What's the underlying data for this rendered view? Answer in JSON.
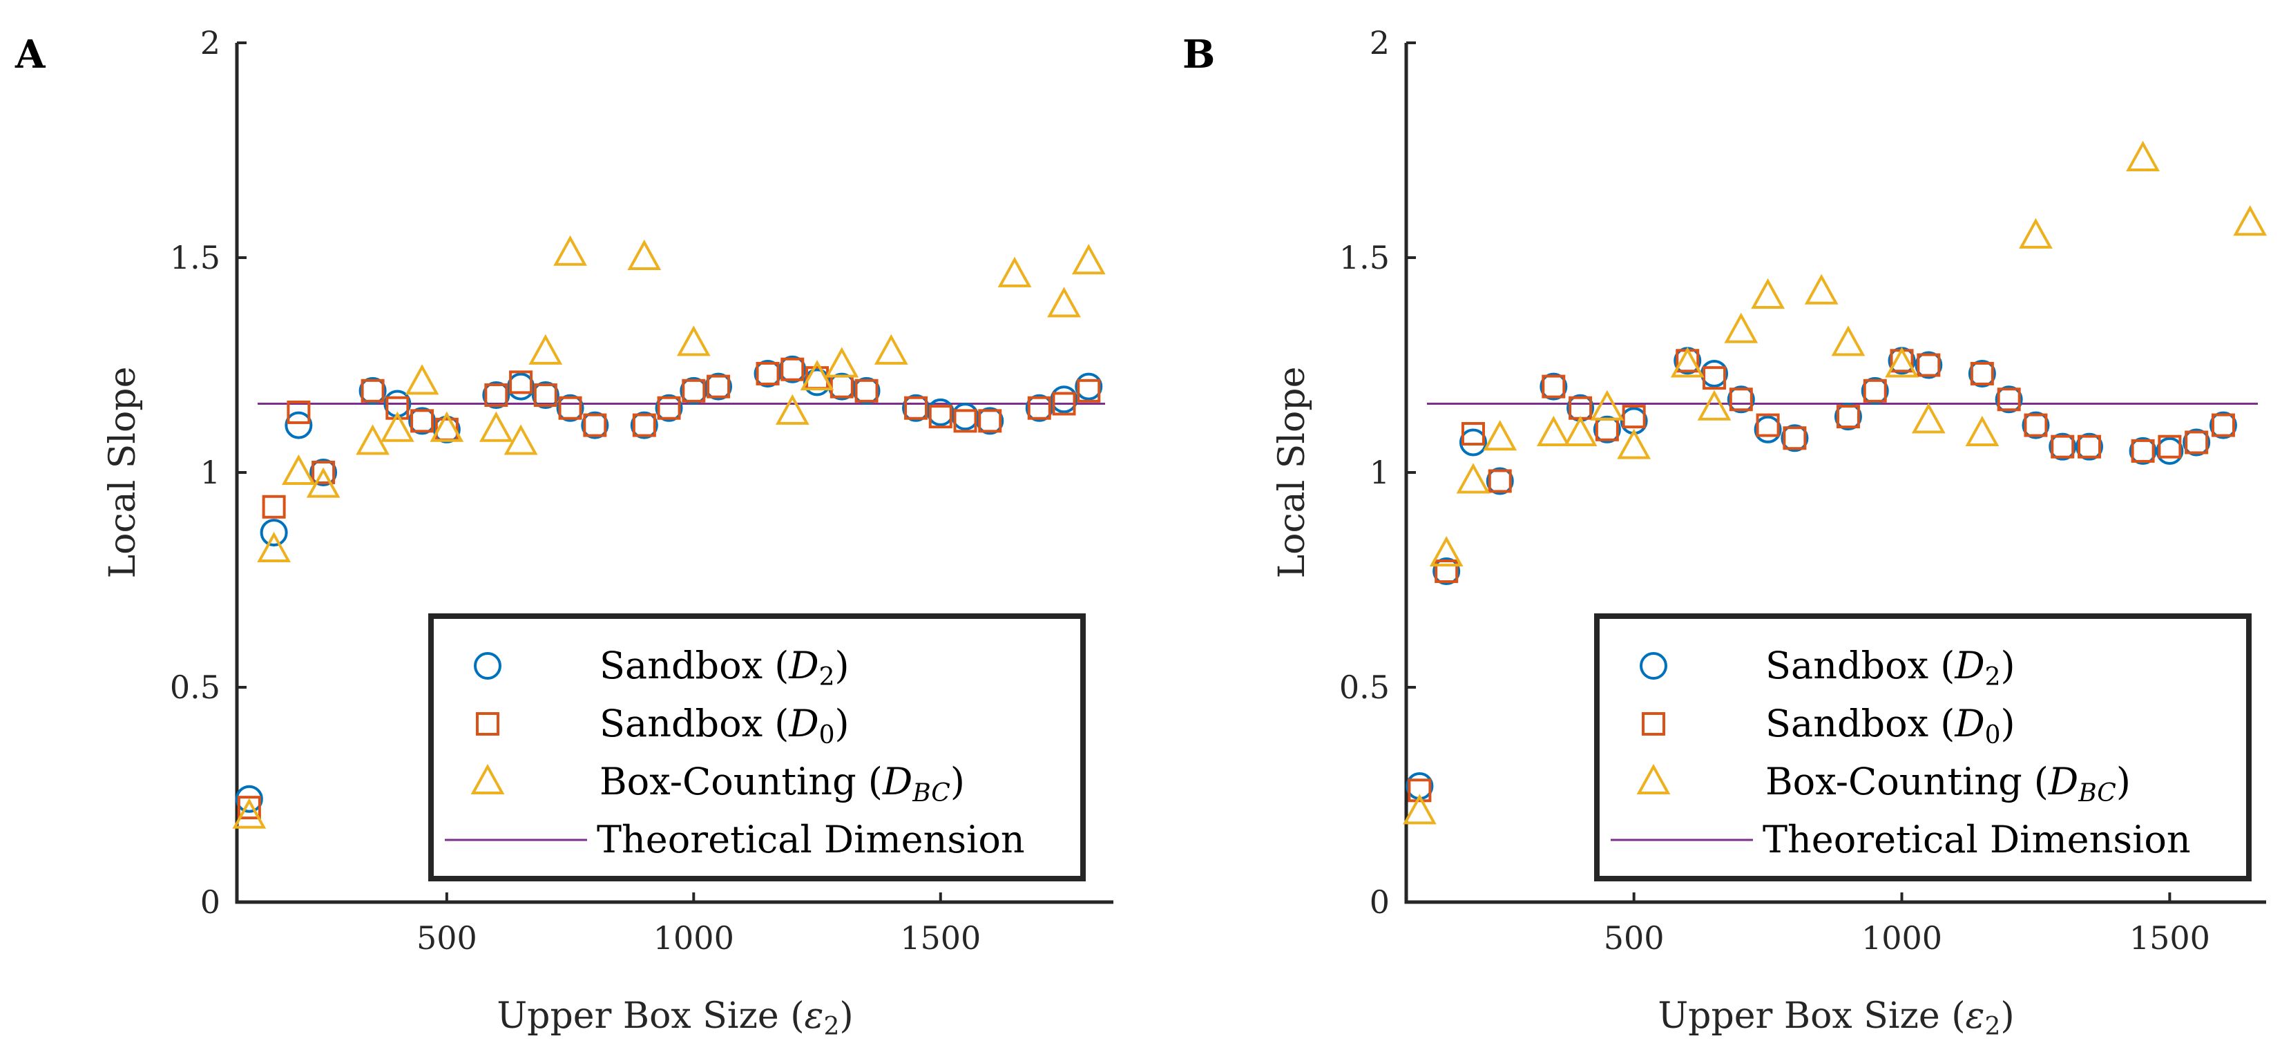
{
  "colors": {
    "sandbox_d2": "#0072BD",
    "sandbox_d0": "#D95319",
    "box_counting": "#EDB120",
    "theoretical": "#7E2F8E",
    "axis": "#262626"
  },
  "chart_data": [
    {
      "type": "scatter",
      "panel_label": "A",
      "xlabel_text": "Upper Box Size (",
      "xlabel_symbol": "ε",
      "xlabel_sub": "2",
      "xlabel_close": ")",
      "ylabel": "Local Slope",
      "xlim": [
        75,
        1850
      ],
      "ylim": [
        0,
        2
      ],
      "xticks": [
        500,
        1000,
        1500
      ],
      "xtick_labels": [
        "500",
        "1000",
        "1500"
      ],
      "yticks": [
        0,
        0.5,
        1,
        1.5,
        2
      ],
      "ytick_labels": [
        "0",
        "0.5",
        "1",
        "1.5",
        "2"
      ],
      "theoretical_dimension": 1.16,
      "legend": [
        {
          "key": "sandbox_d2",
          "marker": "circle",
          "text": "Sandbox (",
          "sym": "D",
          "sub": "2",
          "close": ")"
        },
        {
          "key": "sandbox_d0",
          "marker": "square",
          "text": "Sandbox (",
          "sym": "D",
          "sub": "0",
          "close": ")"
        },
        {
          "key": "box_counting",
          "marker": "triangle",
          "text": "Box-Counting (",
          "sym": "D",
          "sub": "BC",
          "close": ")"
        },
        {
          "key": "theoretical",
          "marker": "line",
          "text": "Theoretical Dimension",
          "sym": "",
          "sub": "",
          "close": ""
        }
      ],
      "series": [
        {
          "key": "sandbox_d2",
          "name": "Sandbox (D2)",
          "marker": "circle",
          "x": [
            100,
            150,
            200,
            250,
            350,
            400,
            450,
            500,
            600,
            650,
            700,
            750,
            800,
            900,
            950,
            1000,
            1050,
            1150,
            1200,
            1250,
            1300,
            1350,
            1450,
            1500,
            1550,
            1600,
            1700,
            1750,
            1800
          ],
          "y": [
            0.24,
            0.86,
            1.11,
            1.0,
            1.19,
            1.16,
            1.12,
            1.1,
            1.18,
            1.2,
            1.18,
            1.15,
            1.11,
            1.11,
            1.15,
            1.19,
            1.2,
            1.23,
            1.24,
            1.21,
            1.2,
            1.19,
            1.15,
            1.14,
            1.13,
            1.12,
            1.15,
            1.17,
            1.2
          ]
        },
        {
          "key": "sandbox_d0",
          "name": "Sandbox (D0)",
          "marker": "square",
          "x": [
            100,
            150,
            200,
            250,
            350,
            400,
            450,
            500,
            600,
            650,
            700,
            750,
            800,
            900,
            950,
            1000,
            1050,
            1150,
            1200,
            1250,
            1300,
            1350,
            1450,
            1500,
            1550,
            1600,
            1700,
            1750,
            1800
          ],
          "y": [
            0.22,
            0.92,
            1.14,
            1.0,
            1.19,
            1.15,
            1.12,
            1.1,
            1.18,
            1.21,
            1.18,
            1.15,
            1.11,
            1.11,
            1.15,
            1.19,
            1.2,
            1.23,
            1.24,
            1.22,
            1.2,
            1.19,
            1.15,
            1.13,
            1.12,
            1.12,
            1.15,
            1.16,
            1.19
          ]
        },
        {
          "key": "box_counting",
          "name": "Box-Counting (DBC)",
          "marker": "triangle",
          "x": [
            100,
            150,
            200,
            250,
            350,
            400,
            450,
            500,
            600,
            650,
            700,
            750,
            900,
            1000,
            1200,
            1250,
            1300,
            1400,
            1650,
            1750,
            1800
          ],
          "y": [
            0.2,
            0.82,
            1.0,
            0.97,
            1.07,
            1.1,
            1.21,
            1.1,
            1.1,
            1.07,
            1.28,
            1.51,
            1.5,
            1.3,
            1.14,
            1.22,
            1.25,
            1.28,
            1.46,
            1.39,
            1.49
          ]
        }
      ]
    },
    {
      "type": "scatter",
      "panel_label": "B",
      "xlabel_text": "Upper Box Size (",
      "xlabel_symbol": "ε",
      "xlabel_sub": "2",
      "xlabel_close": ")",
      "ylabel": "Local Slope",
      "xlim": [
        75,
        1680
      ],
      "ylim": [
        0,
        2
      ],
      "xticks": [
        500,
        1000,
        1500
      ],
      "xtick_labels": [
        "500",
        "1000",
        "1500"
      ],
      "yticks": [
        0,
        0.5,
        1,
        1.5,
        2
      ],
      "ytick_labels": [
        "0",
        "0.5",
        "1",
        "1.5",
        "2"
      ],
      "theoretical_dimension": 1.16,
      "legend": [
        {
          "key": "sandbox_d2",
          "marker": "circle",
          "text": "Sandbox (",
          "sym": "D",
          "sub": "2",
          "close": ")"
        },
        {
          "key": "sandbox_d0",
          "marker": "square",
          "text": "Sandbox (",
          "sym": "D",
          "sub": "0",
          "close": ")"
        },
        {
          "key": "box_counting",
          "marker": "triangle",
          "text": "Box-Counting (",
          "sym": "D",
          "sub": "BC",
          "close": ")"
        },
        {
          "key": "theoretical",
          "marker": "line",
          "text": "Theoretical Dimension",
          "sym": "",
          "sub": "",
          "close": ""
        }
      ],
      "series": [
        {
          "key": "sandbox_d2",
          "name": "Sandbox (D2)",
          "marker": "circle",
          "x": [
            100,
            150,
            200,
            250,
            350,
            400,
            450,
            500,
            600,
            650,
            700,
            750,
            800,
            900,
            950,
            1000,
            1050,
            1150,
            1200,
            1250,
            1300,
            1350,
            1450,
            1500,
            1550,
            1600
          ],
          "y": [
            0.27,
            0.77,
            1.07,
            0.98,
            1.2,
            1.15,
            1.1,
            1.12,
            1.26,
            1.23,
            1.17,
            1.1,
            1.08,
            1.13,
            1.19,
            1.26,
            1.25,
            1.23,
            1.17,
            1.11,
            1.06,
            1.06,
            1.05,
            1.05,
            1.07,
            1.11
          ]
        },
        {
          "key": "sandbox_d0",
          "name": "Sandbox (D0)",
          "marker": "square",
          "x": [
            100,
            150,
            200,
            250,
            350,
            400,
            450,
            500,
            600,
            650,
            700,
            750,
            800,
            900,
            950,
            1000,
            1050,
            1150,
            1200,
            1250,
            1300,
            1350,
            1450,
            1500,
            1550,
            1600
          ],
          "y": [
            0.26,
            0.77,
            1.09,
            0.98,
            1.2,
            1.15,
            1.1,
            1.13,
            1.26,
            1.22,
            1.17,
            1.11,
            1.08,
            1.13,
            1.19,
            1.26,
            1.25,
            1.23,
            1.17,
            1.11,
            1.06,
            1.06,
            1.05,
            1.06,
            1.07,
            1.11
          ]
        },
        {
          "key": "box_counting",
          "name": "Box-Counting (DBC)",
          "marker": "triangle",
          "x": [
            100,
            150,
            200,
            250,
            350,
            400,
            450,
            500,
            600,
            650,
            700,
            750,
            850,
            900,
            1000,
            1050,
            1150,
            1250,
            1450,
            1650
          ],
          "y": [
            0.21,
            0.81,
            0.98,
            1.08,
            1.09,
            1.09,
            1.15,
            1.06,
            1.25,
            1.15,
            1.33,
            1.41,
            1.42,
            1.3,
            1.25,
            1.12,
            1.09,
            1.55,
            1.73,
            1.58
          ]
        }
      ]
    }
  ]
}
